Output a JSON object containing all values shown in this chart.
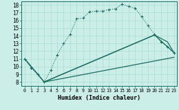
{
  "xlabel": "Humidex (Indice chaleur)",
  "bg_color": "#cceee8",
  "line_color": "#1a6b60",
  "grid_color": "#aaddcc",
  "xlim": [
    -0.5,
    23.5
  ],
  "ylim": [
    7.5,
    18.5
  ],
  "xticks": [
    0,
    1,
    2,
    3,
    4,
    5,
    6,
    7,
    8,
    9,
    10,
    11,
    12,
    13,
    14,
    15,
    16,
    17,
    18,
    19,
    20,
    21,
    22,
    23
  ],
  "yticks": [
    8,
    9,
    10,
    11,
    12,
    13,
    14,
    15,
    16,
    17,
    18
  ],
  "line1_x": [
    0,
    1,
    2,
    3,
    4,
    5,
    6,
    7,
    8,
    9,
    10,
    11,
    12,
    13,
    14,
    15,
    16,
    17,
    18,
    19,
    20,
    21,
    22,
    23
  ],
  "line1_y": [
    11.0,
    9.8,
    9.0,
    8.0,
    9.5,
    11.5,
    13.0,
    14.2,
    16.2,
    16.3,
    17.1,
    17.2,
    17.2,
    17.4,
    17.5,
    18.1,
    17.8,
    17.6,
    16.5,
    15.3,
    14.2,
    13.2,
    12.6,
    11.8
  ],
  "line2_x": [
    0,
    3,
    23
  ],
  "line2_y": [
    11.0,
    8.0,
    11.2
  ],
  "line3_x": [
    0,
    3,
    20,
    23
  ],
  "line3_y": [
    11.0,
    8.0,
    14.1,
    11.8
  ],
  "line4_x": [
    3,
    20,
    22,
    23
  ],
  "line4_y": [
    8.0,
    14.1,
    13.2,
    11.8
  ]
}
